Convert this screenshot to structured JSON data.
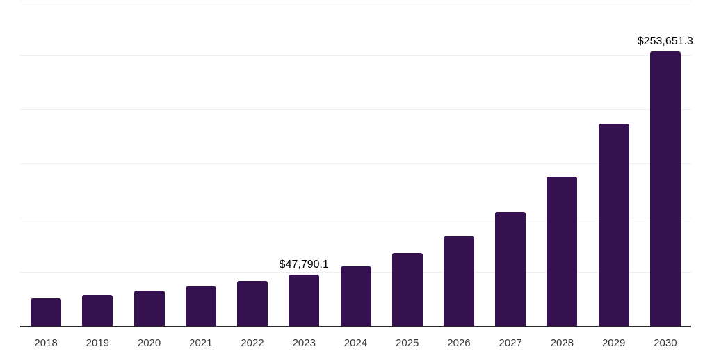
{
  "theme": {
    "bar_color": "#361150",
    "axis_color": "#262626",
    "gridline_color": "#efefef",
    "tick_color": "#383838",
    "data_label_color": "#000000",
    "background_color": "#ffffff"
  },
  "chart_data": {
    "type": "bar",
    "title": "",
    "xlabel": "",
    "ylabel": "",
    "categories": [
      "2018",
      "2019",
      "2020",
      "2021",
      "2022",
      "2023",
      "2024",
      "2025",
      "2026",
      "2027",
      "2028",
      "2029",
      "2030"
    ],
    "values": [
      25700,
      29300,
      32900,
      36600,
      41900,
      47790.1,
      55600,
      67600,
      83200,
      105700,
      138100,
      187100,
      253651.3
    ],
    "data_labels": [
      "",
      "",
      "",
      "",
      "",
      "$47,790.1",
      "",
      "",
      "",
      "",
      "",
      "",
      "$253,651.3"
    ],
    "ylim": [
      0,
      300000
    ],
    "gridline_interval": 50000,
    "grid": "horizontal-only",
    "legend": "none",
    "y_axis_tick_labels": "none"
  }
}
